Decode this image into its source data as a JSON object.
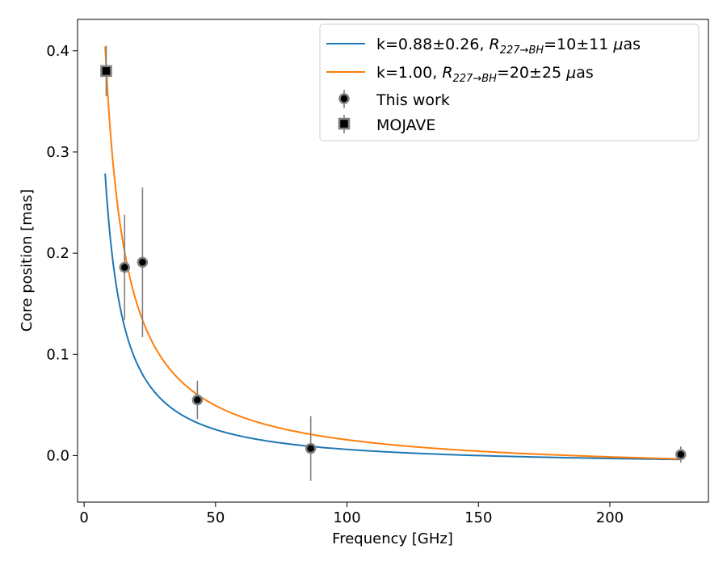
{
  "chart_data": {
    "type": "scatter",
    "title": "",
    "xlabel": "Frequency [GHz]",
    "ylabel": "Core position [mas]",
    "xlim": [
      -2.5,
      237.5
    ],
    "ylim": [
      -0.046,
      0.431
    ],
    "xticks": [
      0,
      50,
      100,
      150,
      200
    ],
    "yticks": [
      0.0,
      0.1,
      0.2,
      0.3,
      0.4
    ],
    "xtick_labels": [
      "0",
      "50",
      "100",
      "150",
      "200"
    ],
    "ytick_labels": [
      "0.0",
      "0.1",
      "0.2",
      "0.3",
      "0.4"
    ],
    "grid": false,
    "legend_position": "top-right",
    "colors": {
      "fit1": "#1f77b4",
      "fit2": "#ff7f0e",
      "errorbar": "#808080",
      "marker_face": "#000000",
      "marker_edge": "#808080"
    },
    "series": [
      {
        "name": "k=0.88±0.26, R_{227→BH}=10±11 μas",
        "legend_main": "k=0.88±0.26, ",
        "legend_R": "R",
        "legend_sub": "227→BH",
        "legend_rest": "=10±11 ",
        "legend_mu": "μ",
        "legend_unit": "as",
        "kind": "line",
        "color": "#1f77b4",
        "k": 0.88,
        "a": 3.07,
        "b": -0.0103,
        "x_range": [
          8.0,
          227.0
        ]
      },
      {
        "name": "k=1.00, R_{227→BH}=20±25 μas",
        "legend_main": "k=1.00, ",
        "legend_R": "R",
        "legend_sub": "227→BH",
        "legend_rest": "=20±25 ",
        "legend_mu": "μ",
        "legend_unit": "as",
        "kind": "line",
        "color": "#ff7f0e",
        "k": 1.0,
        "a": 3.38,
        "b": -0.0182,
        "x_range": [
          8.0,
          227.0
        ]
      },
      {
        "name": "This work",
        "kind": "points",
        "marker": "circle",
        "points": [
          {
            "x": 15.4,
            "y": 0.186,
            "yerr": 0.052
          },
          {
            "x": 22.2,
            "y": 0.191,
            "yerr": 0.074
          },
          {
            "x": 43.1,
            "y": 0.055,
            "yerr": 0.019
          },
          {
            "x": 86.2,
            "y": 0.007,
            "yerr": 0.032
          },
          {
            "x": 227.0,
            "y": 0.001,
            "yerr": 0.008
          }
        ]
      },
      {
        "name": "MOJAVE",
        "kind": "points",
        "marker": "square",
        "points": [
          {
            "x": 8.4,
            "y": 0.38,
            "yerr": 0.025
          }
        ]
      }
    ]
  }
}
